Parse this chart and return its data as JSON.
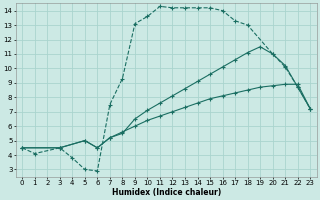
{
  "xlabel": "Humidex (Indice chaleur)",
  "bg_color": "#cce9e4",
  "grid_color": "#aad4ce",
  "line_color": "#1a6e62",
  "xlim": [
    -0.5,
    23.5
  ],
  "ylim": [
    2.5,
    14.5
  ],
  "xticks": [
    0,
    1,
    2,
    3,
    4,
    5,
    6,
    7,
    8,
    9,
    10,
    11,
    12,
    13,
    14,
    15,
    16,
    17,
    18,
    19,
    20,
    21,
    22,
    23
  ],
  "yticks": [
    3,
    4,
    5,
    6,
    7,
    8,
    9,
    10,
    11,
    12,
    13,
    14
  ],
  "curve1_x": [
    0,
    1,
    3,
    4,
    5,
    6,
    7,
    8,
    9,
    10,
    11,
    12,
    13,
    14,
    15,
    16,
    17,
    18,
    20,
    21,
    22,
    23
  ],
  "curve1_y": [
    4.5,
    4.1,
    4.5,
    3.8,
    3.0,
    2.9,
    7.5,
    9.3,
    13.1,
    13.6,
    14.3,
    14.2,
    14.2,
    14.2,
    14.2,
    14.0,
    13.3,
    13.0,
    11.0,
    10.1,
    8.7,
    7.2
  ],
  "curve2_x": [
    0,
    3,
    5,
    6,
    7,
    8,
    9,
    10,
    11,
    12,
    13,
    14,
    15,
    16,
    17,
    18,
    19,
    20,
    21,
    22,
    23
  ],
  "curve2_y": [
    4.5,
    4.5,
    5.0,
    4.5,
    5.2,
    5.5,
    6.5,
    7.1,
    7.6,
    8.1,
    8.6,
    9.1,
    9.6,
    10.1,
    10.6,
    11.1,
    11.5,
    11.0,
    10.2,
    8.7,
    7.2
  ],
  "curve3_x": [
    0,
    3,
    5,
    6,
    7,
    8,
    9,
    10,
    11,
    12,
    13,
    14,
    15,
    16,
    17,
    18,
    19,
    20,
    21,
    22,
    23
  ],
  "curve3_y": [
    4.5,
    4.5,
    5.0,
    4.5,
    5.2,
    5.6,
    6.0,
    6.4,
    6.7,
    7.0,
    7.3,
    7.6,
    7.9,
    8.1,
    8.3,
    8.5,
    8.7,
    8.8,
    8.9,
    8.9,
    7.2
  ]
}
